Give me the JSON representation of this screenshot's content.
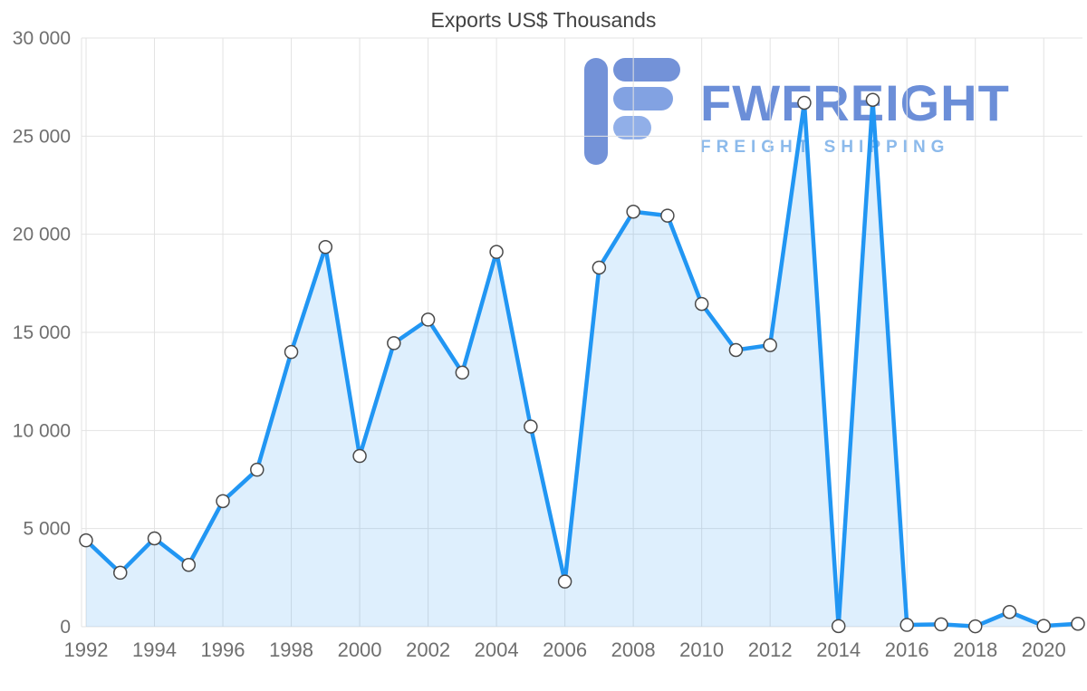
{
  "watermark": {
    "brand": "FWFREIGHT",
    "subtitle": "FREIGHT SHIPPING",
    "logo_color": "#5b80d2"
  },
  "chart_data": {
    "type": "area",
    "title": "Exports US$ Thousands",
    "x": [
      1992,
      1993,
      1994,
      1995,
      1996,
      1997,
      1998,
      1999,
      2000,
      2001,
      2002,
      2003,
      2004,
      2005,
      2006,
      2007,
      2008,
      2009,
      2010,
      2011,
      2012,
      2013,
      2014,
      2015,
      2016,
      2017,
      2018,
      2019,
      2020,
      2021
    ],
    "values": [
      4400,
      2750,
      4500,
      3150,
      6400,
      8000,
      14000,
      19350,
      8700,
      14450,
      15650,
      12950,
      19100,
      10200,
      2300,
      18300,
      21150,
      20950,
      16450,
      14100,
      14350,
      26700,
      30,
      26850,
      90,
      120,
      20,
      750,
      40,
      150
    ],
    "xticks": [
      1992,
      1994,
      1996,
      1998,
      2000,
      2002,
      2004,
      2006,
      2008,
      2010,
      2012,
      2014,
      2016,
      2018,
      2020
    ],
    "ylim": [
      0,
      30000
    ],
    "ytick_step": 5000,
    "ytick_labels": [
      "0",
      "5 000",
      "10 000",
      "15 000",
      "20 000",
      "25 000",
      "30 000"
    ],
    "grid": true,
    "legend": "none",
    "colors": {
      "line": "#2196f3",
      "fill": "rgba(33,150,243,0.15)",
      "marker_fill": "#ffffff",
      "marker_stroke": "#4a4a4a",
      "grid": "#e3e3e3",
      "axis_text": "#6f6f6f",
      "title_text": "#424242"
    }
  }
}
